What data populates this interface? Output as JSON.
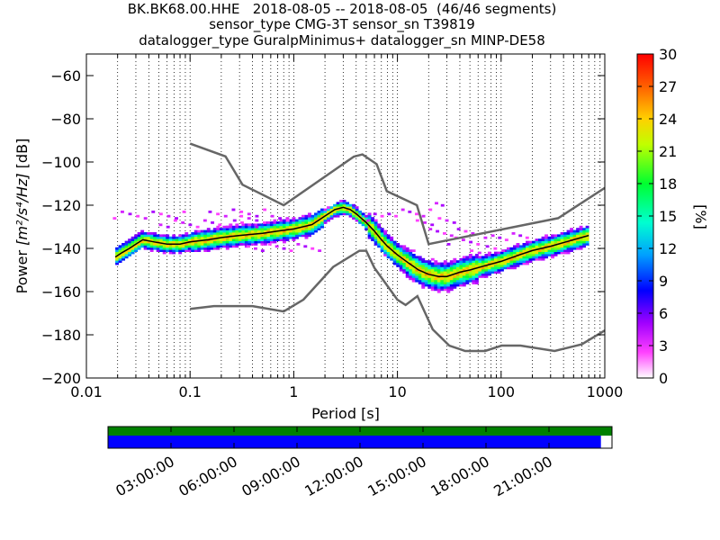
{
  "title_lines": [
    "BK.BK68.00.HHE   2018-08-05 -- 2018-08-05  (46/46 segments)",
    "sensor_type CMG-3T sensor_sn T39819",
    "datalogger_type GuralpMinimus+ datalogger_sn MINP-DE58"
  ],
  "chart_data": {
    "type": "heatmap",
    "xlabel": "Period [s]",
    "ylabel_prefix": "Power ",
    "ylabel_math": "[m²/s⁴/Hz]",
    "ylabel_suffix": " [dB]",
    "x_scale": "log",
    "xlim": [
      0.01,
      1000
    ],
    "ylim": [
      -200,
      -50
    ],
    "x_ticks": [
      0.01,
      0.1,
      1,
      10,
      100,
      1000
    ],
    "x_tick_labels": [
      "0.01",
      "0.1",
      "1",
      "10",
      "100",
      "1000"
    ],
    "y_ticks": [
      -200,
      -180,
      -160,
      -140,
      -120,
      -100,
      -80,
      -60
    ],
    "y_tick_labels": [
      "−200",
      "−180",
      "−160",
      "−140",
      "−120",
      "−100",
      "−80",
      "−60"
    ],
    "grid": "dotted vertical at each decade subdivision",
    "colorbar": {
      "label": "[%]",
      "range": [
        0,
        30
      ],
      "ticks": [
        0,
        3,
        6,
        9,
        12,
        15,
        18,
        21,
        24,
        27,
        30
      ]
    },
    "mode_line": {
      "name": "mode",
      "points": [
        [
          0.019,
          -144
        ],
        [
          0.022,
          -142
        ],
        [
          0.026,
          -140
        ],
        [
          0.03,
          -138
        ],
        [
          0.035,
          -136
        ],
        [
          0.045,
          -137
        ],
        [
          0.06,
          -138
        ],
        [
          0.08,
          -138
        ],
        [
          0.1,
          -137
        ],
        [
          0.15,
          -136
        ],
        [
          0.2,
          -135
        ],
        [
          0.3,
          -134
        ],
        [
          0.5,
          -133
        ],
        [
          0.7,
          -132
        ],
        [
          1,
          -131
        ],
        [
          1.5,
          -129
        ],
        [
          2,
          -125
        ],
        [
          2.5,
          -122
        ],
        [
          3,
          -121
        ],
        [
          3.5,
          -122
        ],
        [
          4,
          -124
        ],
        [
          5,
          -128
        ],
        [
          6,
          -132
        ],
        [
          7,
          -136
        ],
        [
          8,
          -139
        ],
        [
          10,
          -143
        ],
        [
          13,
          -147
        ],
        [
          16,
          -150
        ],
        [
          20,
          -152
        ],
        [
          25,
          -153
        ],
        [
          30,
          -153
        ],
        [
          40,
          -151
        ],
        [
          50,
          -150
        ],
        [
          70,
          -148
        ],
        [
          100,
          -146
        ],
        [
          150,
          -143
        ],
        [
          200,
          -141
        ],
        [
          300,
          -139
        ],
        [
          500,
          -136
        ],
        [
          700,
          -134
        ]
      ]
    },
    "nhnm": {
      "name": "NHNM",
      "points": [
        [
          0.1,
          -91.5
        ],
        [
          0.22,
          -97.4
        ],
        [
          0.32,
          -110.5
        ],
        [
          0.8,
          -120
        ],
        [
          3.8,
          -97.5
        ],
        [
          4.6,
          -96.5
        ],
        [
          6.3,
          -101
        ],
        [
          7.9,
          -113.5
        ],
        [
          15.4,
          -120
        ],
        [
          20,
          -138
        ],
        [
          354.8,
          -126
        ],
        [
          1000,
          -112
        ]
      ]
    },
    "nlnm": {
      "name": "NLNM",
      "points": [
        [
          0.1,
          -168
        ],
        [
          0.17,
          -166.7
        ],
        [
          0.4,
          -166.7
        ],
        [
          0.8,
          -169.2
        ],
        [
          1.24,
          -163.7
        ],
        [
          2.4,
          -148.6
        ],
        [
          4.3,
          -141.1
        ],
        [
          5,
          -141.1
        ],
        [
          6,
          -149
        ],
        [
          10,
          -163.8
        ],
        [
          12,
          -166.2
        ],
        [
          15.6,
          -162.1
        ],
        [
          21.9,
          -177.5
        ],
        [
          31.6,
          -185
        ],
        [
          45,
          -187.5
        ],
        [
          70,
          -187.5
        ],
        [
          101,
          -185
        ],
        [
          154,
          -185
        ],
        [
          328,
          -187.5
        ],
        [
          600,
          -184.4
        ],
        [
          1000,
          -178
        ]
      ]
    },
    "time_axis": {
      "tick_labels": [
        "03:00:00",
        "06:00:00",
        "09:00:00",
        "12:00:00",
        "15:00:00",
        "18:00:00",
        "21:00:00"
      ],
      "tick_hours": [
        3,
        6,
        9,
        12,
        15,
        18,
        21
      ],
      "range_hours": [
        0,
        24
      ],
      "data_coverage_fraction": 1.0,
      "psd_coverage_fraction": 0.978,
      "colors": {
        "data": "#008000",
        "psd": "#0000ff"
      }
    }
  }
}
